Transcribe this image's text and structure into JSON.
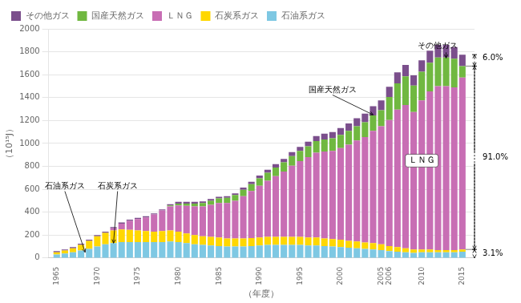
{
  "chart_data": {
    "type": "bar",
    "stacked": true,
    "x": [
      1965,
      1966,
      1967,
      1968,
      1969,
      1970,
      1971,
      1972,
      1973,
      1974,
      1975,
      1976,
      1977,
      1978,
      1979,
      1980,
      1981,
      1982,
      1983,
      1984,
      1985,
      1986,
      1987,
      1988,
      1989,
      1990,
      1991,
      1992,
      1993,
      1994,
      1995,
      1996,
      1997,
      1998,
      1999,
      2000,
      2001,
      2002,
      2003,
      2004,
      2005,
      2006,
      2007,
      2008,
      2009,
      2010,
      2011,
      2012,
      2013,
      2014,
      2015
    ],
    "series": [
      {
        "name": "石油系ガス",
        "color": "#7ec8e3",
        "values": [
          30,
          40,
          50,
          65,
          80,
          100,
          120,
          130,
          140,
          140,
          140,
          140,
          140,
          140,
          145,
          140,
          130,
          120,
          115,
          110,
          105,
          100,
          100,
          100,
          105,
          110,
          115,
          115,
          115,
          115,
          115,
          110,
          110,
          105,
          100,
          95,
          90,
          85,
          80,
          75,
          70,
          60,
          55,
          50,
          45,
          50,
          50,
          50,
          50,
          50,
          55
        ]
      },
      {
        "name": "石炭系ガス",
        "color": "#ffd700",
        "values": [
          20,
          25,
          35,
          50,
          70,
          90,
          100,
          110,
          110,
          105,
          100,
          95,
          90,
          95,
          95,
          90,
          85,
          80,
          75,
          75,
          75,
          70,
          70,
          70,
          70,
          70,
          70,
          70,
          70,
          70,
          70,
          70,
          70,
          65,
          65,
          65,
          60,
          60,
          55,
          55,
          50,
          45,
          40,
          35,
          30,
          25,
          25,
          20,
          20,
          20,
          20
        ]
      },
      {
        "name": "ＬＮＧ",
        "color": "#c86eb4",
        "values": [
          0,
          0,
          0,
          0,
          0,
          0,
          0,
          20,
          50,
          80,
          100,
          120,
          150,
          180,
          210,
          230,
          240,
          250,
          260,
          280,
          300,
          310,
          330,
          370,
          410,
          450,
          490,
          530,
          570,
          620,
          660,
          700,
          740,
          760,
          770,
          800,
          840,
          880,
          920,
          980,
          1030,
          1100,
          1200,
          1250,
          1200,
          1300,
          1380,
          1430,
          1430,
          1420,
          1500
        ]
      },
      {
        "name": "国産天然ガス",
        "color": "#70b840",
        "values": [
          0,
          0,
          0,
          0,
          0,
          0,
          0,
          0,
          0,
          0,
          0,
          0,
          0,
          0,
          10,
          15,
          20,
          25,
          30,
          35,
          40,
          45,
          50,
          55,
          60,
          65,
          70,
          75,
          80,
          85,
          90,
          95,
          100,
          105,
          110,
          115,
          120,
          125,
          130,
          135,
          140,
          200,
          230,
          250,
          230,
          250,
          250,
          250,
          250,
          250,
          100
        ]
      },
      {
        "name": "その他ガス",
        "color": "#7b4f8c",
        "values": [
          10,
          10,
          10,
          10,
          10,
          10,
          10,
          10,
          10,
          10,
          10,
          10,
          10,
          10,
          10,
          15,
          15,
          15,
          15,
          15,
          15,
          15,
          15,
          20,
          20,
          25,
          25,
          30,
          30,
          35,
          35,
          40,
          45,
          50,
          55,
          60,
          65,
          70,
          75,
          80,
          85,
          90,
          95,
          100,
          90,
          100,
          105,
          110,
          110,
          100,
          100
        ]
      }
    ],
    "xlim": [
      1964,
      2016.5
    ],
    "xticks": [
      1965,
      1970,
      1975,
      1980,
      1985,
      1990,
      1995,
      2000,
      2005,
      2006,
      2010,
      2015
    ],
    "ylim": [
      0,
      2000
    ],
    "yticks": [
      0,
      200,
      400,
      600,
      800,
      1000,
      1200,
      1400,
      1600,
      1800,
      2000
    ],
    "ylabel": "（10¹⁵J）",
    "xlabel": "（年度）",
    "grid": true,
    "legend": "upper left",
    "annotations": [
      "石油系ガス",
      "石炭系ガス",
      "国産天然ガス",
      "その他ガス",
      "ＬＮＧ",
      "6.0%",
      "91.0%",
      "3.1%"
    ]
  }
}
